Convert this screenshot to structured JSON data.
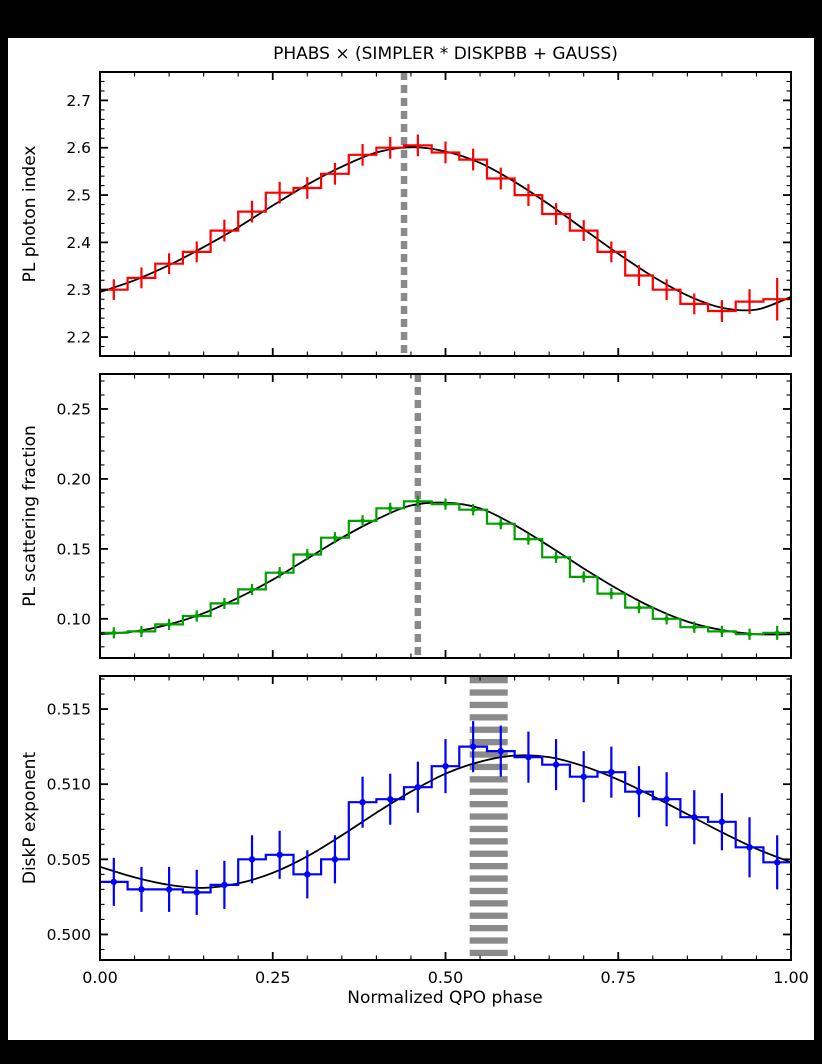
{
  "figure": {
    "background": "#000000",
    "canvas": "#ffffff"
  },
  "chart_data": {
    "type": "line",
    "title": "PHABS × (SIMPLER * DISKPBB + GAUSS)",
    "xlabel": "Normalized QPO phase",
    "xlim": [
      0.0,
      1.0
    ],
    "x_ticks": [
      {
        "v": 0.0,
        "label": "0.00"
      },
      {
        "v": 0.25,
        "label": "0.25"
      },
      {
        "v": 0.5,
        "label": "0.50"
      },
      {
        "v": 0.75,
        "label": "0.75"
      },
      {
        "v": 1.0,
        "label": "1.00"
      }
    ],
    "x_minor_step": 0.05,
    "grid": false,
    "legend": "none",
    "bin_width": 0.04,
    "bin_centers": [
      0.02,
      0.06,
      0.1,
      0.14,
      0.18,
      0.22,
      0.26,
      0.3,
      0.34,
      0.38,
      0.42,
      0.46,
      0.5,
      0.54,
      0.58,
      0.62,
      0.66,
      0.7,
      0.74,
      0.78,
      0.82,
      0.86,
      0.9,
      0.94,
      0.98
    ],
    "panels": [
      {
        "name": "pl-photon-index",
        "ylabel": "PL photon index",
        "color": "#ff0000",
        "marker_radius": 0,
        "ylim": [
          2.16,
          2.76
        ],
        "y_ticks": [
          {
            "v": 2.2,
            "label": "2.2"
          },
          {
            "v": 2.3,
            "label": "2.3"
          },
          {
            "v": 2.4,
            "label": "2.4"
          },
          {
            "v": 2.5,
            "label": "2.5"
          },
          {
            "v": 2.6,
            "label": "2.6"
          },
          {
            "v": 2.7,
            "label": "2.7"
          }
        ],
        "y_minor_step": 0.02,
        "values": [
          2.3,
          2.325,
          2.355,
          2.38,
          2.425,
          2.465,
          2.505,
          2.515,
          2.545,
          2.585,
          2.6,
          2.605,
          2.59,
          2.575,
          2.535,
          2.5,
          2.46,
          2.425,
          2.38,
          2.33,
          2.3,
          2.27,
          2.255,
          2.275,
          2.28
        ],
        "yerr": [
          0.022,
          0.022,
          0.022,
          0.022,
          0.023,
          0.023,
          0.023,
          0.023,
          0.023,
          0.023,
          0.023,
          0.023,
          0.023,
          0.023,
          0.023,
          0.023,
          0.023,
          0.022,
          0.022,
          0.022,
          0.022,
          0.022,
          0.023,
          0.026,
          0.045
        ],
        "fit_x": [
          0.0,
          0.05,
          0.1,
          0.15,
          0.2,
          0.25,
          0.3,
          0.35,
          0.4,
          0.45,
          0.5,
          0.55,
          0.6,
          0.65,
          0.7,
          0.75,
          0.8,
          0.85,
          0.9,
          0.95,
          1.0
        ],
        "fit_y": [
          2.295,
          2.32,
          2.352,
          2.39,
          2.432,
          2.478,
          2.522,
          2.56,
          2.59,
          2.601,
          2.592,
          2.568,
          2.528,
          2.48,
          2.428,
          2.376,
          2.328,
          2.288,
          2.262,
          2.258,
          2.285
        ],
        "phase_marker": {
          "type": "dashed-line",
          "x": 0.44,
          "color": "#8a8a8a"
        }
      },
      {
        "name": "pl-scattering-fraction",
        "ylabel": "PL scattering fraction",
        "color": "#00a000",
        "marker_radius": 2.3,
        "ylim": [
          0.072,
          0.275
        ],
        "y_ticks": [
          {
            "v": 0.1,
            "label": "0.10"
          },
          {
            "v": 0.15,
            "label": "0.15"
          },
          {
            "v": 0.2,
            "label": "0.20"
          },
          {
            "v": 0.25,
            "label": "0.25"
          }
        ],
        "y_minor_step": 0.01,
        "values": [
          0.09,
          0.091,
          0.096,
          0.102,
          0.111,
          0.121,
          0.133,
          0.146,
          0.158,
          0.17,
          0.179,
          0.184,
          0.182,
          0.178,
          0.168,
          0.157,
          0.144,
          0.13,
          0.118,
          0.108,
          0.1,
          0.094,
          0.091,
          0.089,
          0.09
        ],
        "yerr": [
          0.004,
          0.004,
          0.004,
          0.004,
          0.004,
          0.004,
          0.004,
          0.004,
          0.004,
          0.004,
          0.004,
          0.004,
          0.004,
          0.004,
          0.004,
          0.004,
          0.004,
          0.004,
          0.004,
          0.004,
          0.004,
          0.004,
          0.004,
          0.004,
          0.005
        ],
        "fit_x": [
          0.0,
          0.05,
          0.1,
          0.15,
          0.2,
          0.25,
          0.3,
          0.35,
          0.4,
          0.45,
          0.5,
          0.55,
          0.6,
          0.65,
          0.7,
          0.75,
          0.8,
          0.85,
          0.9,
          0.95,
          1.0
        ],
        "fit_y": [
          0.089,
          0.091,
          0.096,
          0.104,
          0.115,
          0.128,
          0.143,
          0.158,
          0.171,
          0.181,
          0.183,
          0.179,
          0.167,
          0.152,
          0.136,
          0.121,
          0.108,
          0.098,
          0.092,
          0.089,
          0.089
        ],
        "phase_marker": {
          "type": "dashed-line",
          "x": 0.46,
          "color": "#8a8a8a"
        }
      },
      {
        "name": "diskp-exponent",
        "ylabel": "DiskP exponent",
        "color": "#0000ff",
        "marker_radius": 3.2,
        "ylim": [
          0.4983,
          0.5172
        ],
        "y_ticks": [
          {
            "v": 0.5,
            "label": "0.500"
          },
          {
            "v": 0.505,
            "label": "0.505"
          },
          {
            "v": 0.51,
            "label": "0.510"
          },
          {
            "v": 0.515,
            "label": "0.515"
          }
        ],
        "y_minor_step": 0.001,
        "values": [
          0.5035,
          0.503,
          0.503,
          0.5028,
          0.5033,
          0.505,
          0.5053,
          0.504,
          0.505,
          0.5088,
          0.509,
          0.5098,
          0.5112,
          0.5125,
          0.5122,
          0.5118,
          0.5113,
          0.5105,
          0.5108,
          0.5095,
          0.509,
          0.5078,
          0.5075,
          0.5058,
          0.5048
        ],
        "yerr": [
          0.0016,
          0.0015,
          0.0015,
          0.0015,
          0.0016,
          0.0016,
          0.0016,
          0.0016,
          0.0016,
          0.0017,
          0.0017,
          0.0017,
          0.0018,
          0.0017,
          0.0017,
          0.0017,
          0.0017,
          0.0017,
          0.0017,
          0.0017,
          0.0018,
          0.0018,
          0.0019,
          0.002,
          0.0018
        ],
        "fit_x": [
          0.0,
          0.05,
          0.1,
          0.15,
          0.2,
          0.25,
          0.3,
          0.35,
          0.4,
          0.45,
          0.5,
          0.55,
          0.6,
          0.65,
          0.7,
          0.75,
          0.8,
          0.85,
          0.9,
          0.95,
          1.0
        ],
        "fit_y": [
          0.5045,
          0.5038,
          0.5033,
          0.5031,
          0.5034,
          0.5041,
          0.5052,
          0.5066,
          0.5081,
          0.5095,
          0.5107,
          0.5115,
          0.5119,
          0.5118,
          0.5112,
          0.5103,
          0.5092,
          0.508,
          0.5068,
          0.5057,
          0.5048
        ],
        "phase_marker": {
          "type": "hatched-band",
          "x0": 0.535,
          "x1": 0.59,
          "color": "#8a8a8a"
        }
      }
    ]
  }
}
